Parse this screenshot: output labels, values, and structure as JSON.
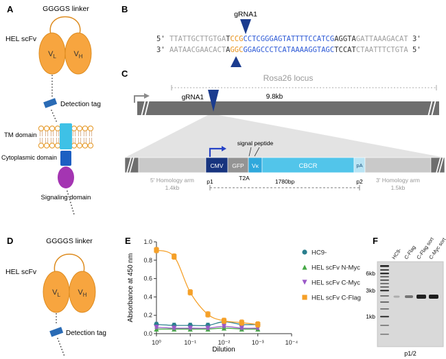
{
  "colors": {
    "scfv_fill": "#F7A53F",
    "detection_tag": "#2A6BB5",
    "tm_domain": "#3EC1E6",
    "cytoplasmic_domain": "#1D5FC2",
    "signaling_domain": "#A435B2",
    "grna_triangle": "#1B3C8F",
    "locus_bar": "#6E6E6E",
    "homology_arm": "#C9C9C9",
    "cmv_box": "#17347E",
    "gfp_box": "#949494",
    "vk_box": "#2FA8DC",
    "cbcr_box": "#52C5EA",
    "pa_box": "#B9E4F4"
  },
  "panel_a": {
    "label": "A",
    "linker_label": "GGGGS linker",
    "scfv_label": "HEL scFv",
    "vl_main": "V",
    "vl_sub": "L",
    "vh_main": "V",
    "vh_sub": "H",
    "detection_tag_label": "Detection tag",
    "tm_label": "TM domain",
    "cytoplasmic_label": "Cytoplasmic domain",
    "signaling_label": "Signaling domain"
  },
  "panel_b": {
    "label": "B",
    "grna_label": "gRNA1",
    "top_strand": [
      {
        "text": "5' ",
        "color": "#333333"
      },
      {
        "text": "TTATTGCTTGTGA",
        "color": "#9E9E9E"
      },
      {
        "text": "T",
        "color": "#333333"
      },
      {
        "text": "CCG",
        "color": "#E8931C"
      },
      {
        "text": "CCTCGGGAGTATTTTCCATCG",
        "color": "#2F5BD6"
      },
      {
        "text": "AGGTA",
        "color": "#333333"
      },
      {
        "text": "GATTAAAGACAT",
        "color": "#9E9E9E"
      },
      {
        "text": " 3'",
        "color": "#333333"
      }
    ],
    "bottom_strand": [
      {
        "text": "3' ",
        "color": "#333333"
      },
      {
        "text": "AATAACGAACACT",
        "color": "#9E9E9E"
      },
      {
        "text": "A",
        "color": "#333333"
      },
      {
        "text": "GGC",
        "color": "#E8931C"
      },
      {
        "text": "GGAGCCCTCATAAAAGGTAGC",
        "color": "#2F5BD6"
      },
      {
        "text": "TCCAT",
        "color": "#333333"
      },
      {
        "text": "CTAATTTCTGTA",
        "color": "#9E9E9E"
      },
      {
        "text": " 5'",
        "color": "#333333"
      }
    ]
  },
  "panel_c": {
    "label": "C",
    "title": "Rosa26 locus",
    "grna_label": "gRNA1",
    "locus_size": "9.8kb",
    "cmv": "CMV",
    "gfp": "GFP",
    "t2a": "T2A",
    "vk": "Vκ",
    "cbcr": "CBCR",
    "pa": "pA",
    "signal_peptide": "signal peptide",
    "left_arm": "5' Homology arm",
    "left_arm_size": "1.4kb",
    "right_arm": "3' Homology arm",
    "right_arm_size": "1.5kb",
    "p1": "p1",
    "p2": "p2",
    "insert_size": "1780bp"
  },
  "panel_d": {
    "label": "D",
    "linker_label": "GGGGS linker",
    "scfv_label": "HEL scFv",
    "vl_main": "V",
    "vl_sub": "L",
    "vh_main": "V",
    "vh_sub": "H",
    "detection_tag_label": "Detection tag"
  },
  "panel_e": {
    "label": "E"
  },
  "chart_data": {
    "type": "line",
    "title": "",
    "xlabel": "Dilution",
    "ylabel": "Absorbance at 450 nm",
    "x_scale": "log-reversed",
    "xlim_exponents": [
      0,
      -4
    ],
    "ylim": [
      0,
      1.0
    ],
    "grid": false,
    "legend_position": "right",
    "y_ticks": [
      0.0,
      0.2,
      0.4,
      0.6,
      0.8,
      1.0
    ],
    "x_tick_labels": [
      "10⁰",
      "10⁻¹",
      "10⁻²",
      "10⁻³",
      "10⁻⁴"
    ],
    "x": [
      1,
      0.3,
      0.1,
      0.03,
      0.01,
      0.003,
      0.001
    ],
    "series": [
      {
        "name": "HC9-",
        "color": "#2A7F8E",
        "marker": "circle",
        "error": 0.025,
        "values": [
          0.1,
          0.09,
          0.09,
          0.09,
          0.13,
          0.1,
          0.1
        ]
      },
      {
        "name": "HEL scFv N-Myc",
        "color": "#45A845",
        "marker": "triangle-up",
        "error": 0.012,
        "values": [
          0.05,
          0.05,
          0.05,
          0.05,
          0.06,
          0.05,
          0.05
        ]
      },
      {
        "name": "HEL scFv C-Myc",
        "color": "#9B59C8",
        "marker": "triangle-down",
        "error": 0.015,
        "values": [
          0.07,
          0.06,
          0.06,
          0.06,
          0.08,
          0.06,
          0.06
        ]
      },
      {
        "name": "HEL scFv C-Flag",
        "color": "#F5A028",
        "marker": "square",
        "error": 0.03,
        "values": [
          0.91,
          0.84,
          0.45,
          0.21,
          0.14,
          0.12,
          0.1
        ]
      }
    ]
  },
  "panel_f": {
    "label": "F",
    "lanes": [
      "HC9-",
      "C-Flag",
      "C-Flag sort",
      "C-Myc sort"
    ],
    "size_markers": [
      "6kb",
      "3kb",
      "1kb"
    ],
    "caption": "p1/2"
  }
}
